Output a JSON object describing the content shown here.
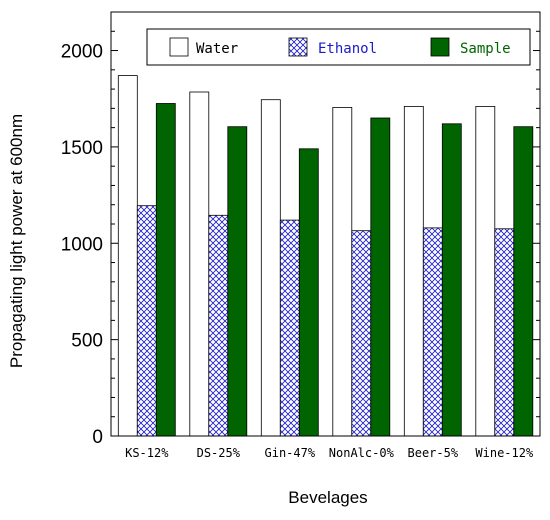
{
  "chart_data": {
    "type": "bar",
    "xlabel": "Bevelages",
    "ylabel": "Propagating light power at 600nm",
    "ylim": [
      0,
      2200
    ],
    "yticks": [
      0,
      500,
      1000,
      1500,
      2000
    ],
    "categories": [
      "KS-12%",
      "DS-25%",
      "Gin-47%",
      "NonAlc-0%",
      "Beer-5%",
      "Wine-12%"
    ],
    "series": [
      {
        "name": "Water",
        "values": [
          1870,
          1785,
          1745,
          1705,
          1710,
          1710
        ],
        "color": "#ffffff",
        "fill": "solid-white",
        "text_color": "#000000"
      },
      {
        "name": "Ethanol",
        "values": [
          1195,
          1145,
          1120,
          1065,
          1080,
          1075
        ],
        "color": "#1a1acc",
        "fill": "crosshatch",
        "text_color": "#1a1acc"
      },
      {
        "name": "Sample",
        "values": [
          1725,
          1605,
          1490,
          1650,
          1620,
          1605
        ],
        "color": "#006400",
        "fill": "solid-green",
        "text_color": "#006400"
      }
    ],
    "grid": false,
    "legend_position": "top-right"
  }
}
